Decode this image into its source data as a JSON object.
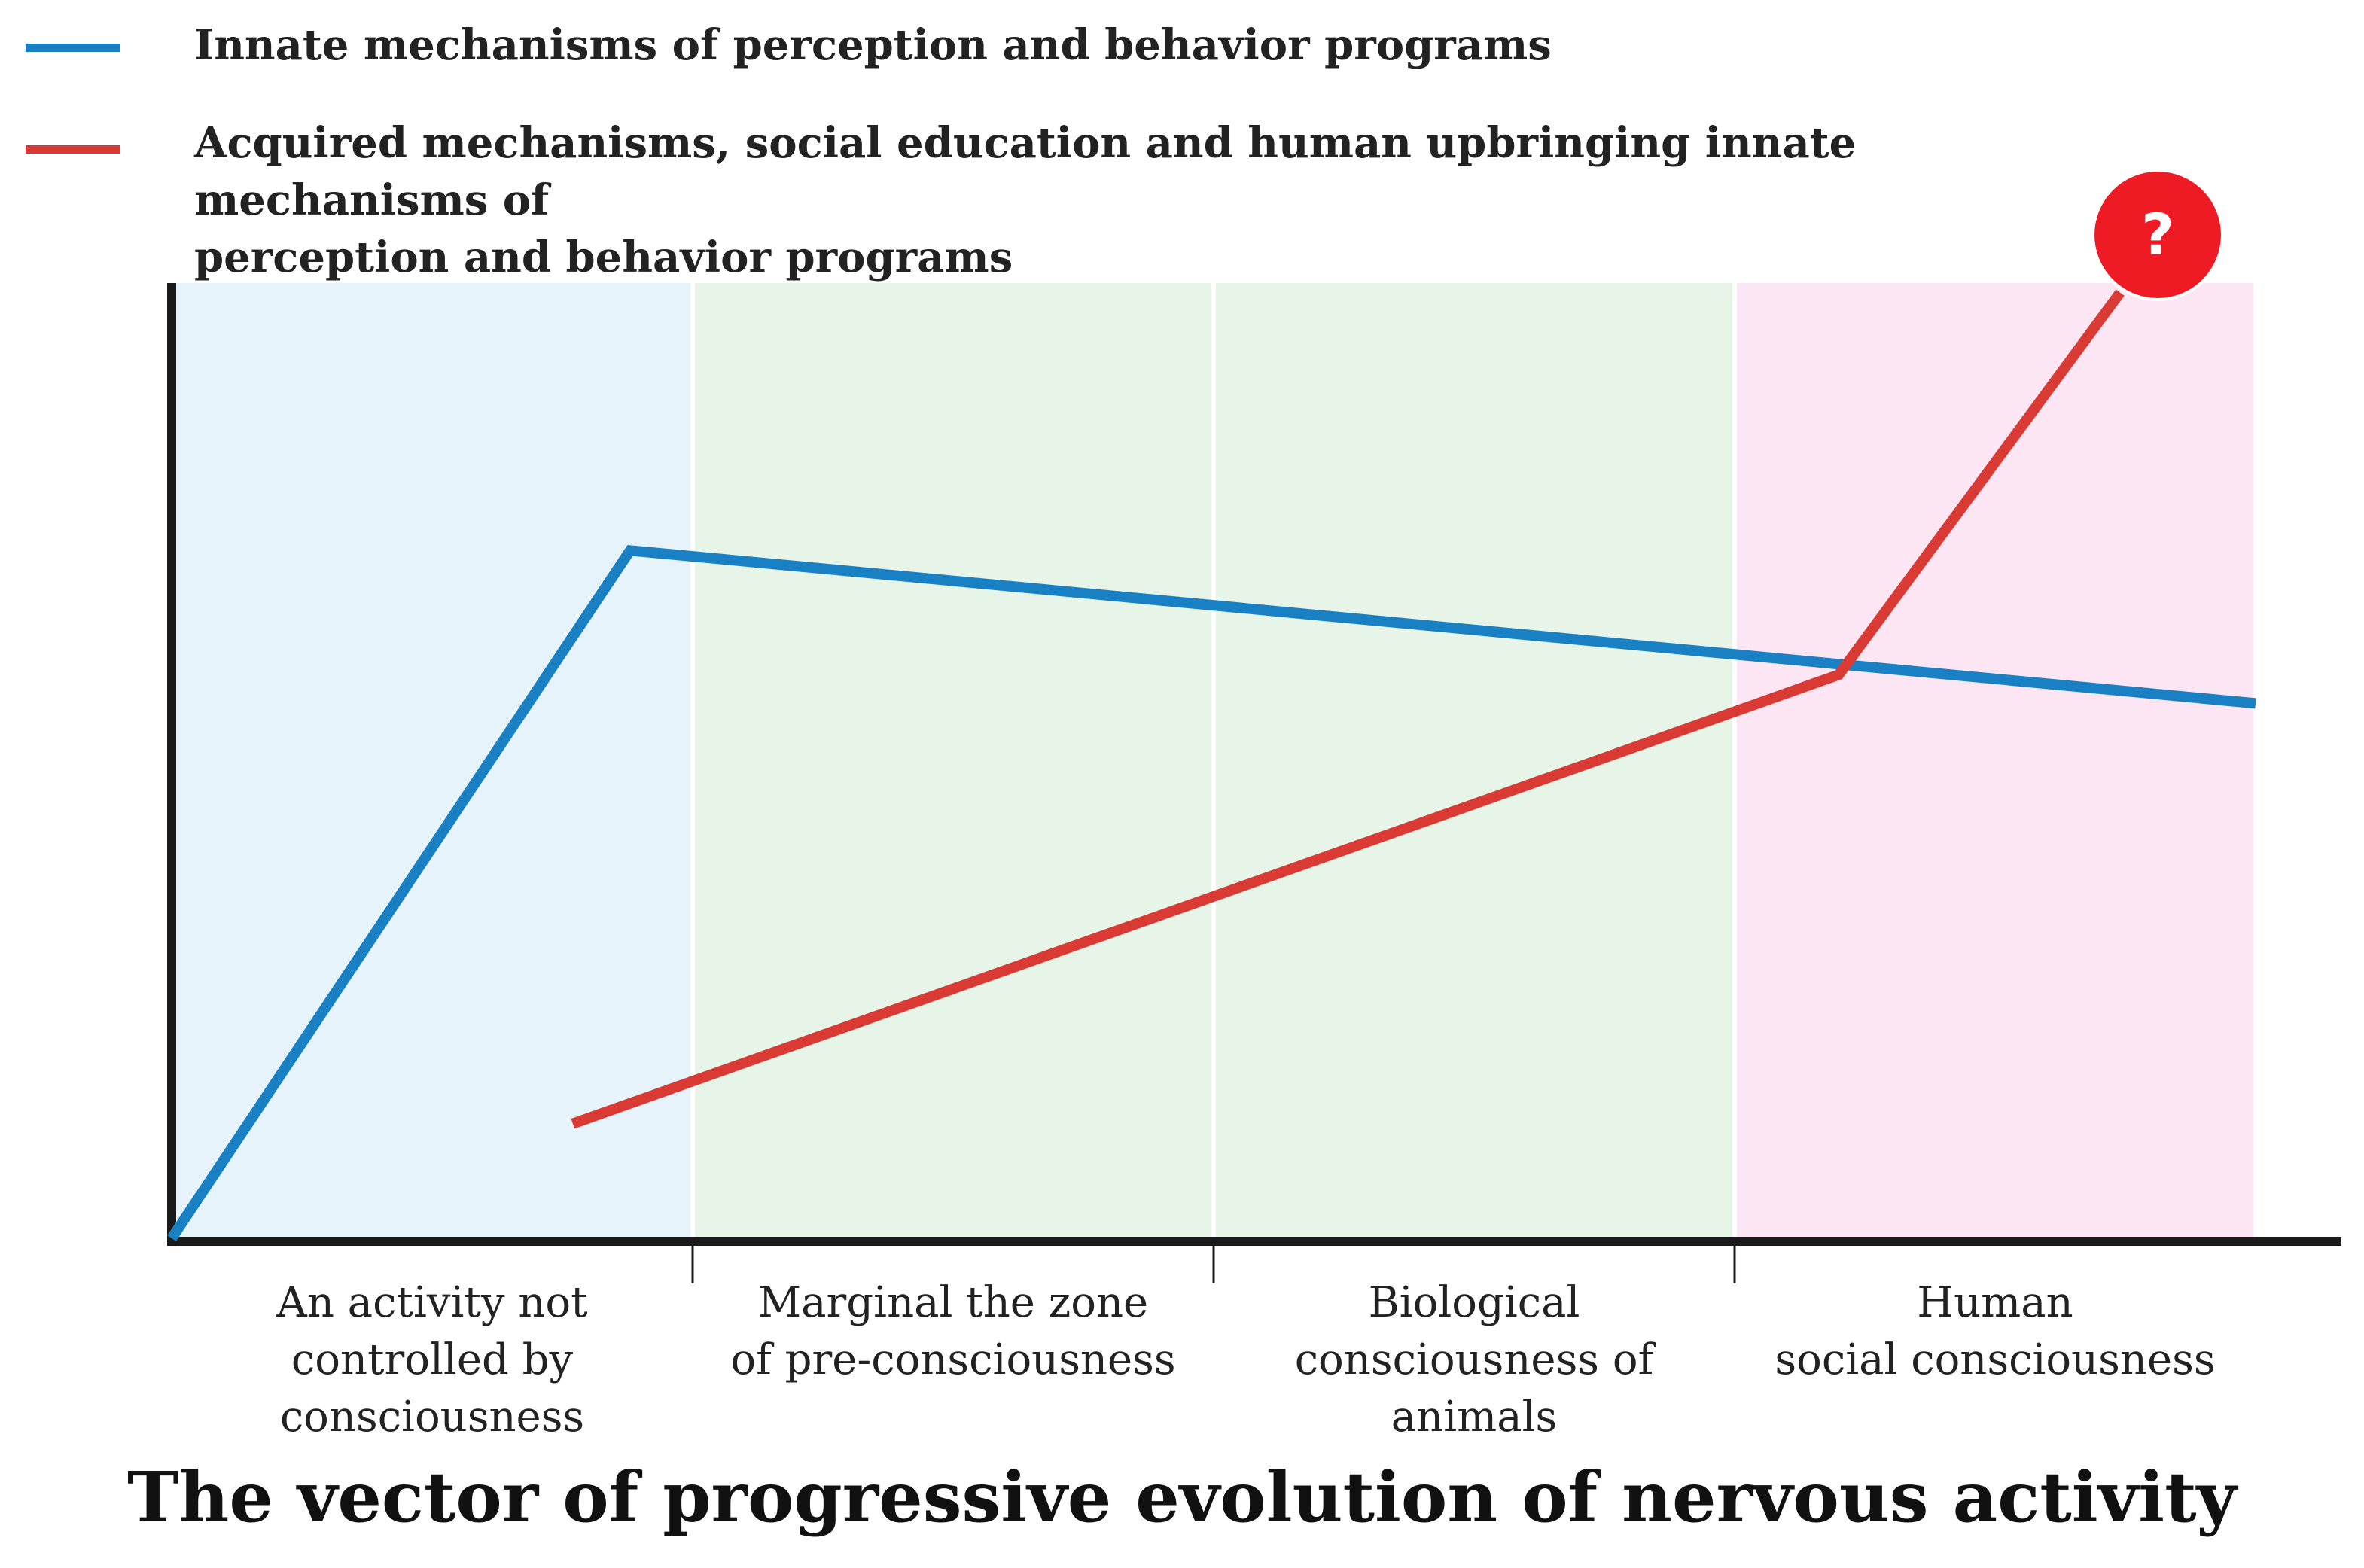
{
  "legend": {
    "items": [
      {
        "color": "#1a80c4",
        "lines": [
          "Innate mechanisms of perception and behavior programs"
        ]
      },
      {
        "color": "#d93a33",
        "lines": [
          "Acquired mechanisms, social education and human upbringing innate mechanisms of",
          "perception and behavior programs"
        ]
      }
    ]
  },
  "marker": {
    "text": "?",
    "color": "#ef1b24"
  },
  "chart_data": {
    "type": "line",
    "title": "",
    "xlabel": "The vector of progressive evolution of nervous activity",
    "ylabel": "",
    "xlim": [
      0,
      4
    ],
    "ylim": [
      0,
      100
    ],
    "grid": false,
    "legend_position": "top-left",
    "categories": [
      {
        "lines": [
          "An activity not",
          "controlled by",
          "consciousness"
        ],
        "band_color": "#e7f3fb"
      },
      {
        "lines": [
          "Marginal the zone",
          "of pre-consciousness"
        ],
        "band_color": "#e6f5e7"
      },
      {
        "lines": [
          "Biological",
          "consciousness of",
          "animals"
        ],
        "band_color": "#e6f5e7"
      },
      {
        "lines": [
          "Human",
          "social consciousness"
        ],
        "band_color": "#fde6f3"
      }
    ],
    "series": [
      {
        "name": "Innate mechanisms of perception and behavior programs",
        "color": "#1a80c4",
        "x": [
          0,
          0.88,
          4.0
        ],
        "y": [
          0,
          72,
          56
        ]
      },
      {
        "name": "Acquired mechanisms, social education and human upbringing innate mechanisms of perception and behavior programs",
        "color": "#d93a33",
        "x": [
          0.77,
          3.2,
          3.74
        ],
        "y": [
          12,
          59,
          99
        ]
      }
    ]
  }
}
